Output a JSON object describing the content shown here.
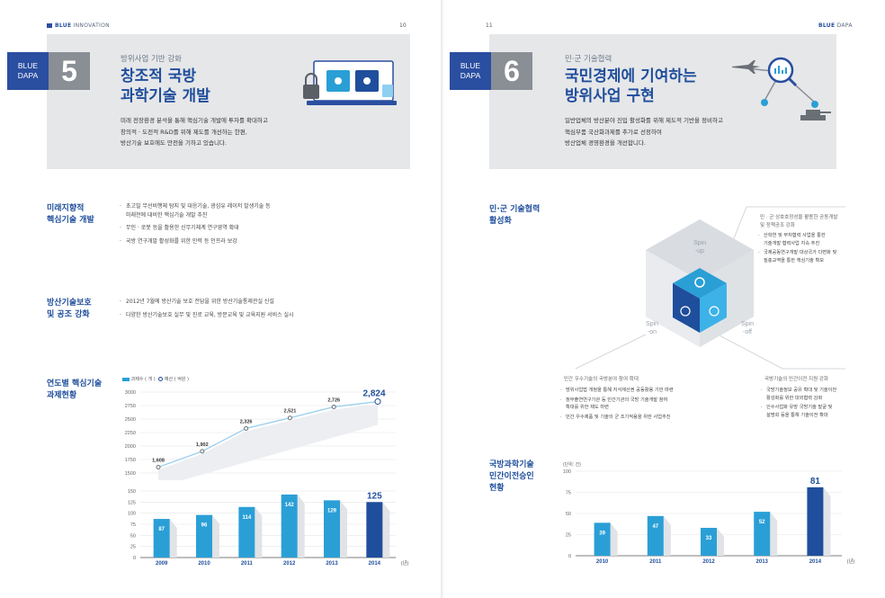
{
  "left_page": {
    "runhead_brand": "BLUE",
    "runhead_rest": " INNOVATION",
    "page_number": "10",
    "banner": {
      "tag": "BLUE\nDAPA",
      "number": "5",
      "kicker": "방위사업 기반 강화",
      "title": "창조적 국방\n과학기술 개발",
      "description": "미래 전장환경 분석을 통해 핵심기술 개발에 투자를 확대하고\n창의적 · 도전적 R&D를 위해 제도를 개선하는 한편,\n방산기술 보호에도 만전을 기하고 있습니다."
    },
    "section1": {
      "title": "미래지향적\n핵심기술 개발",
      "bullets": [
        "초고밀 무선비행체 탐지 및 대응기술, 광섬유 레이저 발생기술 등\n  미래전에 대비한 핵심기술 개발 추진",
        "무인 · 로봇 등을 활용한 신무기체계 연구영역 확대",
        "국방 연구개발 활성화를 위한 인력 등 인프라 보강"
      ]
    },
    "section2": {
      "title": "방산기술보호\n및 공조 강화",
      "bullets": [
        "2012년 7월에 방산기술 보호 전담을 위한 방산기술통제관실 신설",
        "다양한 방산기술보호 실무 및 진로 교육, 방문교육 및 교육지원 서비스 실시"
      ]
    },
    "section3": {
      "title": "연도별 핵심기술\n과제현황",
      "legend_bar": "과제수 ( 개 )",
      "legend_line": "예산 ( 억원 )"
    }
  },
  "right_page": {
    "runhead_brand": "BLUE",
    "runhead_rest": " DAPA",
    "page_number": "11",
    "banner": {
      "tag": "BLUE\nDAPA",
      "number": "6",
      "kicker": "민·군 기술협력",
      "title": "국민경제에 기여하는\n방위사업 구현",
      "description": "일반업체의 방산분야 진입 활성화를 위해 제도적 기반을 정비하고\n핵심부품 국산화과제를 추가로 선정하여\n방산업체 경영환경을 개선합니다."
    },
    "section1": {
      "title": "민·군 기술협력\n활성화",
      "cube": {
        "top": "Spin\n-up",
        "left": "Spin\n-on",
        "right": "Spin\n-off"
      },
      "top_right_head": "민 · 군 상호호정성을 활용한 공동개발\n및 정책공조 강화",
      "top_right_bullets": [
        "산학연 및 부처협력 사업을 통한\n기술개발 협력사업 지속 추진",
        "국제공동연구개발 대상국가 다변화 및\n질충교역을 통한 핵심기술 확보"
      ],
      "bottom_left_head": "민간 우수기술의 국방분야 참여 확대",
      "bottom_left_bullets": [
        "방위사업법 개정을 통해 지식재산권  공동활용 기반 마련",
        "정부출연연구기관 등 민간기관의 국방 기술개발 참여\n확대를 위한 제도 마련",
        "민간 우수제품 및 기술의 군 조기적용을 위한 사업추진"
      ],
      "bottom_right_head": "국방기술의 민간이전 지원 강화",
      "bottom_right_bullets": [
        "국방기술정보 공유 확대 및 기술이전\n활성화를 위한 대외협력 강화",
        "인수사업화 유망 국방기술 발굴 및\n설명회 등을 통해 기술이전 확대"
      ]
    },
    "section2": {
      "title": "국방과학기술\n민간이전승인\n현황"
    }
  },
  "chart_data": [
    {
      "type": "line",
      "title": "",
      "categories": [
        "2009",
        "2010",
        "2011",
        "2012",
        "2013",
        "2014"
      ],
      "series": [
        {
          "name": "예산 ( 억원 )",
          "values": [
            1608,
            1902,
            2326,
            2521,
            2726,
            2824
          ]
        }
      ],
      "value_labels": [
        "1,608",
        "1,902",
        "2,326",
        "2,521",
        "2,726",
        "2,824"
      ],
      "yticks": [
        "1500",
        "1750",
        "2000",
        "2250",
        "2500",
        "2750",
        "3000"
      ],
      "ylim": [
        1500,
        3000
      ],
      "grid": true
    },
    {
      "type": "bar",
      "title": "",
      "categories": [
        "2009",
        "2010",
        "2011",
        "2012",
        "2013",
        "2014"
      ],
      "series": [
        {
          "name": "과제수 ( 개 )",
          "values": [
            87,
            96,
            114,
            142,
            129,
            125
          ]
        }
      ],
      "yticks": [
        "0",
        "25",
        "50",
        "75",
        "100",
        "125",
        "150"
      ],
      "ylim": [
        0,
        150
      ],
      "xunit": "(년)",
      "grid": true,
      "highlight_color": "#1f4e9c",
      "bar_color": "#2a9fd6"
    },
    {
      "type": "bar",
      "title": "",
      "ylabel": "(단위: 건)",
      "categories": [
        "2010",
        "2011",
        "2012",
        "2013",
        "2014"
      ],
      "series": [
        {
          "name": "",
          "values": [
            39,
            47,
            33,
            52,
            81
          ]
        }
      ],
      "yticks": [
        "0",
        "25",
        "50",
        "75",
        "100"
      ],
      "ylim": [
        0,
        100
      ],
      "xunit": "(년)",
      "grid": true,
      "highlight_color": "#1f4e9c",
      "bar_color": "#2a9fd6"
    }
  ]
}
